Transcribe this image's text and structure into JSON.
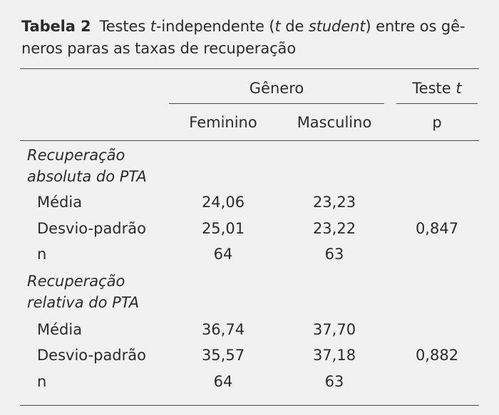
{
  "caption": {
    "label": "Tabela 2",
    "parts": [
      {
        "text": "Testes ",
        "italic": false
      },
      {
        "text": "t",
        "italic": true
      },
      {
        "text": "-independente (",
        "italic": false
      },
      {
        "text": "t",
        "italic": true
      },
      {
        "text": " de ",
        "italic": false
      },
      {
        "text": "student",
        "italic": true
      },
      {
        "text": ") entre os gê-",
        "italic": false
      },
      {
        "text": "neros paras as taxas de recuperação",
        "italic": false
      }
    ]
  },
  "header": {
    "group": "Gênero",
    "test": "Teste",
    "test_symbol": "t",
    "col_fem": "Feminino",
    "col_masc": "Masculino",
    "col_p": "p"
  },
  "sections": [
    {
      "title_line1": "Recuperação",
      "title_line2": "absoluta do PTA",
      "rows": [
        {
          "label": "Média",
          "fem": "24,06",
          "masc": "23,23"
        },
        {
          "label": "Desvio-padrão",
          "fem": "25,01",
          "masc": "23,22"
        },
        {
          "label": "n",
          "fem": "64",
          "masc": "63"
        }
      ],
      "p": "0,847"
    },
    {
      "title_line1": "Recuperação",
      "title_line2": "relativa do PTA",
      "rows": [
        {
          "label": "Média",
          "fem": "36,74",
          "masc": "37,70"
        },
        {
          "label": "Desvio-padrão",
          "fem": "35,57",
          "masc": "37,18"
        },
        {
          "label": "n",
          "fem": "64",
          "masc": "63"
        }
      ],
      "p": "0,882"
    }
  ]
}
